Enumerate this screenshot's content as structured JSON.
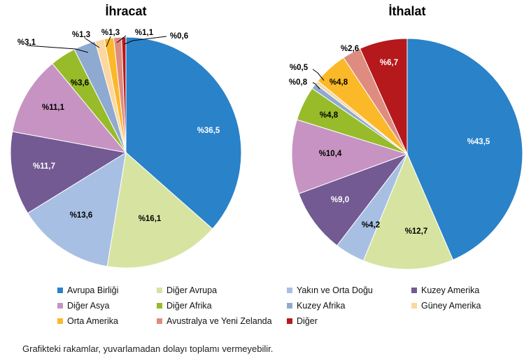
{
  "chart_data": [
    {
      "type": "pie",
      "title": "İhracat",
      "categories": [
        "Avrupa Birliği",
        "Diğer Avrupa",
        "Yakın ve Orta Doğu",
        "Kuzey Amerika",
        "Diğer Asya",
        "Diğer Afrika",
        "Kuzey Afrika",
        "Güney Amerika",
        "Orta Amerika",
        "Avustralya ve Yeni Zelanda",
        "Diğer"
      ],
      "values": [
        36.5,
        16.1,
        13.6,
        11.7,
        11.1,
        3.6,
        3.1,
        1.3,
        1.3,
        1.1,
        0.6
      ],
      "labels": [
        "%36,5",
        "%16,1",
        "%13,6",
        "%11,7",
        "%11,1",
        "%3,6",
        "%3,1",
        "%1,3",
        "%1,3",
        "%1,1",
        "%0,6"
      ]
    },
    {
      "type": "pie",
      "title": "İthalat",
      "categories": [
        "Avrupa Birliği",
        "Diğer Avrupa",
        "Yakın ve Orta Doğu",
        "Kuzey Amerika",
        "Diğer Asya",
        "Diğer Afrika",
        "Kuzey Afrika",
        "Güney Amerika",
        "Orta Amerika",
        "Avustralya ve Yeni Zelanda",
        "Diğer"
      ],
      "values": [
        43.5,
        12.7,
        4.2,
        9.0,
        10.4,
        4.8,
        0.8,
        0.5,
        4.8,
        2.6,
        6.7
      ],
      "labels": [
        "%43,5",
        "%12,7",
        "%4,2",
        "%9,0",
        "%10,4",
        "%4,8",
        "%0,8",
        "%0,5",
        "%4,8",
        "%2,6",
        "%6,7"
      ]
    }
  ],
  "colors": [
    "#2A82C9",
    "#D7E4A1",
    "#A7BFE3",
    "#735A93",
    "#C793C2",
    "#97BB29",
    "#8FAAD1",
    "#FCD7A0",
    "#FBB829",
    "#DF8C80",
    "#B5191C"
  ],
  "label_colors": [
    "#ffffff",
    "#000000",
    "#000000",
    "#ffffff",
    "#000000",
    "#000000",
    "#000000",
    "#000000",
    "#000000",
    "#000000",
    "#ffffff"
  ],
  "legend": {
    "rows": [
      [
        "Avrupa Birliği",
        "Diğer Avrupa",
        "Yakın ve Orta Doğu",
        "Kuzey Amerika"
      ],
      [
        "Diğer Asya",
        "Diğer Afrika",
        "Kuzey Afrika",
        "Güney Amerika"
      ],
      [
        "Orta Amerika",
        "Avustralya ve Yeni Zelanda",
        "Diğer"
      ]
    ]
  },
  "footnote": "Grafikteki rakamlar, yuvarlamadan dolayı toplamı vermeyebilir."
}
